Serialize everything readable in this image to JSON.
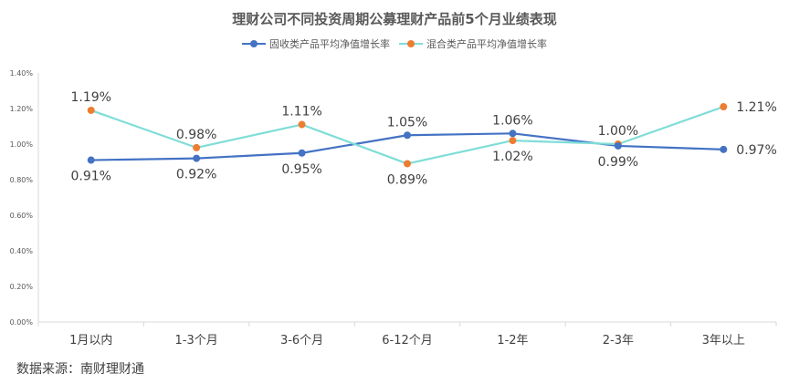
{
  "chart_data": {
    "type": "line",
    "title": "理财公司不同投资周期公募理财产品前5个月业绩表现",
    "xlabel": "",
    "ylabel": "",
    "categories": [
      "1月以内",
      "1-3个月",
      "3-6个月",
      "6-12个月",
      "1-2年",
      "2-3年",
      "3年以上"
    ],
    "ylim": [
      0,
      1.4
    ],
    "yticks": [
      "0.00%",
      "0.20%",
      "0.40%",
      "0.60%",
      "0.80%",
      "1.00%",
      "1.20%",
      "1.40%"
    ],
    "grid": false,
    "legend_position": "top",
    "series": [
      {
        "name": "固收类产品平均净值增长率",
        "values": [
          0.91,
          0.92,
          0.95,
          1.05,
          1.06,
          0.99,
          0.97
        ],
        "labels": [
          "0.91%",
          "0.92%",
          "0.95%",
          "1.05%",
          "1.06%",
          "0.99%",
          "0.97%"
        ],
        "line_color": "#4472C4",
        "marker_color": "#4472C4"
      },
      {
        "name": "混合类产品平均净值增长率",
        "values": [
          1.19,
          0.98,
          1.11,
          0.89,
          1.02,
          1.0,
          1.21
        ],
        "labels": [
          "1.19%",
          "0.98%",
          "1.11%",
          "0.89%",
          "1.02%",
          "1.00%",
          "1.21%"
        ],
        "line_color": "#7FDDD7",
        "marker_color": "#ED7D31"
      }
    ]
  },
  "source": "数据来源：南财理财通"
}
